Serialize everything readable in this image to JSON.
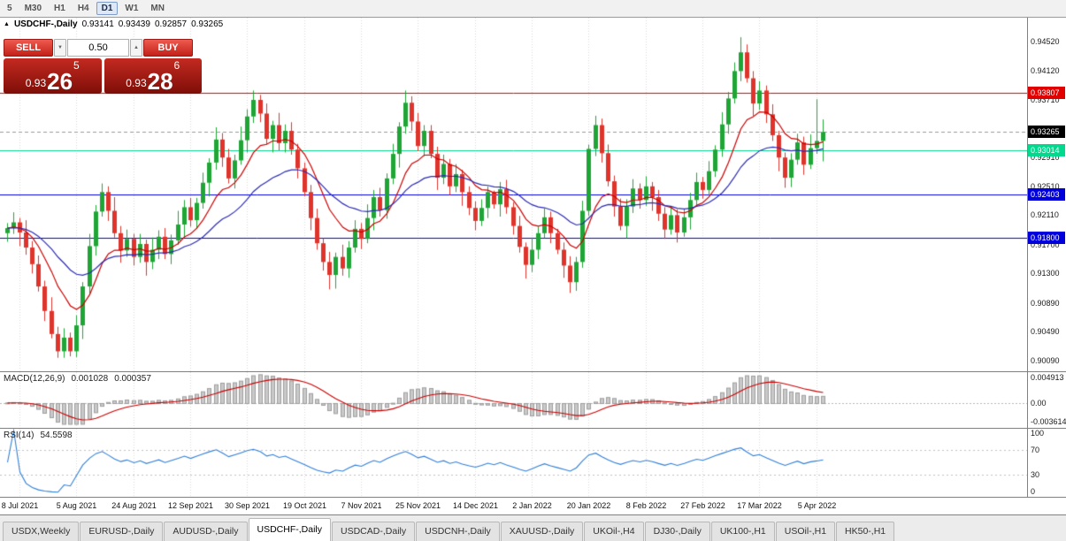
{
  "toolbar": {
    "timeframes": [
      "5",
      "M30",
      "H1",
      "H4",
      "D1",
      "W1",
      "MN"
    ],
    "active": "D1"
  },
  "icons": {
    "symbol_arrow": "▲",
    "caret_down": "▼",
    "caret_up": "▲"
  },
  "chart": {
    "header": {
      "title": "USDCHF-,Daily",
      "open": "0.93141",
      "high": "0.93439",
      "low": "0.92857",
      "close": "0.93265"
    },
    "y_axis": [
      "0.94520",
      "0.94120",
      "0.93710",
      "0.93310",
      "0.92910",
      "0.92510",
      "0.92110",
      "0.91700",
      "0.91300",
      "0.90890",
      "0.90490",
      "0.90090"
    ]
  },
  "trade": {
    "sell_label": "SELL",
    "buy_label": "BUY",
    "volume": "0.50",
    "sell_price": {
      "prefix": "0.93",
      "pips": "26",
      "point": "5"
    },
    "buy_price": {
      "prefix": "0.93",
      "pips": "28",
      "point": "6"
    }
  },
  "macd": {
    "title": "MACD(12,26,9)",
    "value_main": "0.001028",
    "value_signal": "0.000357",
    "axis": [
      "0.004913",
      "0.00",
      "-0.003614"
    ]
  },
  "rsi": {
    "title": "RSI(14)",
    "value": "54.5598",
    "axis": [
      "100",
      "70",
      "30",
      "0"
    ]
  },
  "time_axis": [
    "8 Jul 2021",
    "5 Aug 2021",
    "24 Aug 2021",
    "12 Sep 2021",
    "30 Sep 2021",
    "19 Oct 2021",
    "7 Nov 2021",
    "25 Nov 2021",
    "14 Dec 2021",
    "2 Jan 2022",
    "20 Jan 2022",
    "8 Feb 2022",
    "27 Feb 2022",
    "17 Mar 2022",
    "5 Apr 2022"
  ],
  "tabs": [
    {
      "label": "USDX,Weekly"
    },
    {
      "label": "EURUSD-,Daily"
    },
    {
      "label": "AUDUSD-,Daily"
    },
    {
      "label": "USDCHF-,Daily",
      "active": true
    },
    {
      "label": "USDCAD-,Daily"
    },
    {
      "label": "USDCNH-,Daily"
    },
    {
      "label": "XAUUSD-,Daily"
    },
    {
      "label": "UKOil-,H4"
    },
    {
      "label": "DJ30-,Daily"
    },
    {
      "label": "UK100-,H1"
    },
    {
      "label": "USOil-,H1"
    },
    {
      "label": "HK50-,H1"
    }
  ],
  "chart_data": {
    "type": "candlestick",
    "title": "USDCHF-,Daily",
    "up_color": "#1fa535",
    "down_color": "#de342c",
    "y_range": [
      0.9009,
      0.9452
    ],
    "x_tick_labels": [
      "8 Jul 2021",
      "5 Aug 2021",
      "24 Aug 2021",
      "12 Sep 2021",
      "30 Sep 2021",
      "19 Oct 2021",
      "7 Nov 2021",
      "25 Nov 2021",
      "14 Dec 2021",
      "2 Jan 2022",
      "20 Jan 2022",
      "8 Feb 2022",
      "27 Feb 2022",
      "17 Mar 2022",
      "5 Apr 2022"
    ],
    "x_tick_indices": [
      2,
      11,
      20,
      29,
      38,
      47,
      56,
      65,
      74,
      83,
      92,
      101,
      110,
      119,
      128
    ],
    "candles": [
      [
        0.9186,
        0.92,
        0.9174,
        0.9193
      ],
      [
        0.9193,
        0.9215,
        0.9185,
        0.9201
      ],
      [
        0.9201,
        0.9207,
        0.9168,
        0.9187
      ],
      [
        0.9187,
        0.9204,
        0.9156,
        0.9166
      ],
      [
        0.9166,
        0.9175,
        0.913,
        0.9143
      ],
      [
        0.9143,
        0.9155,
        0.9105,
        0.9112
      ],
      [
        0.9112,
        0.912,
        0.9064,
        0.9078
      ],
      [
        0.9078,
        0.9097,
        0.904,
        0.9046
      ],
      [
        0.9046,
        0.9056,
        0.9013,
        0.9022
      ],
      [
        0.9022,
        0.9054,
        0.9013,
        0.9041
      ],
      [
        0.9041,
        0.9048,
        0.9015,
        0.9022
      ],
      [
        0.9022,
        0.9072,
        0.9014,
        0.9058
      ],
      [
        0.9058,
        0.9118,
        0.9039,
        0.9112
      ],
      [
        0.9112,
        0.9185,
        0.9102,
        0.9168
      ],
      [
        0.9168,
        0.9225,
        0.9155,
        0.9216
      ],
      [
        0.9216,
        0.9255,
        0.9209,
        0.9243
      ],
      [
        0.9243,
        0.9251,
        0.9203,
        0.9217
      ],
      [
        0.9217,
        0.9236,
        0.918,
        0.9186
      ],
      [
        0.9186,
        0.9196,
        0.9145,
        0.9162
      ],
      [
        0.9162,
        0.9191,
        0.9153,
        0.9178
      ],
      [
        0.9178,
        0.9185,
        0.9141,
        0.9153
      ],
      [
        0.9153,
        0.9185,
        0.9145,
        0.9171
      ],
      [
        0.9171,
        0.9177,
        0.9127,
        0.9146
      ],
      [
        0.9146,
        0.918,
        0.9136,
        0.9163
      ],
      [
        0.9163,
        0.919,
        0.915,
        0.9181
      ],
      [
        0.9181,
        0.9193,
        0.915,
        0.9157
      ],
      [
        0.9157,
        0.9184,
        0.9143,
        0.9176
      ],
      [
        0.9176,
        0.9217,
        0.917,
        0.9198
      ],
      [
        0.9198,
        0.9232,
        0.9181,
        0.9222
      ],
      [
        0.9222,
        0.9235,
        0.9195,
        0.9204
      ],
      [
        0.9204,
        0.9235,
        0.9192,
        0.9228
      ],
      [
        0.9228,
        0.927,
        0.922,
        0.9256
      ],
      [
        0.9256,
        0.929,
        0.9237,
        0.9284
      ],
      [
        0.9284,
        0.9333,
        0.9274,
        0.9316
      ],
      [
        0.9316,
        0.9325,
        0.9278,
        0.9291
      ],
      [
        0.9291,
        0.9303,
        0.9255,
        0.9262
      ],
      [
        0.9262,
        0.9295,
        0.9248,
        0.9287
      ],
      [
        0.9287,
        0.9334,
        0.9281,
        0.9315
      ],
      [
        0.9315,
        0.9358,
        0.9298,
        0.9348
      ],
      [
        0.9348,
        0.9384,
        0.9339,
        0.9371
      ],
      [
        0.9371,
        0.9378,
        0.934,
        0.9352
      ],
      [
        0.9352,
        0.9366,
        0.9309,
        0.9317
      ],
      [
        0.9317,
        0.9342,
        0.9298,
        0.9336
      ],
      [
        0.9336,
        0.9353,
        0.9301,
        0.9311
      ],
      [
        0.9311,
        0.9337,
        0.9298,
        0.9328
      ],
      [
        0.9328,
        0.934,
        0.9295,
        0.9302
      ],
      [
        0.9302,
        0.931,
        0.9262,
        0.9276
      ],
      [
        0.9276,
        0.9284,
        0.9237,
        0.9243
      ],
      [
        0.9243,
        0.9253,
        0.919,
        0.9207
      ],
      [
        0.9207,
        0.922,
        0.9163,
        0.9172
      ],
      [
        0.9172,
        0.9179,
        0.9134,
        0.9146
      ],
      [
        0.9146,
        0.916,
        0.9108,
        0.9128
      ],
      [
        0.9128,
        0.9159,
        0.9109,
        0.9153
      ],
      [
        0.9153,
        0.917,
        0.9127,
        0.9137
      ],
      [
        0.9137,
        0.9175,
        0.9124,
        0.9166
      ],
      [
        0.9166,
        0.9204,
        0.9159,
        0.9192
      ],
      [
        0.9192,
        0.92,
        0.9164,
        0.9178
      ],
      [
        0.9178,
        0.9226,
        0.9172,
        0.9207
      ],
      [
        0.9207,
        0.9246,
        0.919,
        0.9236
      ],
      [
        0.9236,
        0.9249,
        0.9209,
        0.9218
      ],
      [
        0.9218,
        0.9269,
        0.9206,
        0.9262
      ],
      [
        0.9262,
        0.931,
        0.9254,
        0.9296
      ],
      [
        0.9296,
        0.934,
        0.9277,
        0.9334
      ],
      [
        0.9334,
        0.9384,
        0.9324,
        0.9367
      ],
      [
        0.9367,
        0.9376,
        0.9328,
        0.9341
      ],
      [
        0.9341,
        0.9353,
        0.93,
        0.9307
      ],
      [
        0.9307,
        0.9336,
        0.9293,
        0.9328
      ],
      [
        0.9328,
        0.9336,
        0.929,
        0.9296
      ],
      [
        0.9296,
        0.9306,
        0.9246,
        0.9263
      ],
      [
        0.9263,
        0.9295,
        0.9254,
        0.9282
      ],
      [
        0.9282,
        0.9289,
        0.9239,
        0.9251
      ],
      [
        0.9251,
        0.9282,
        0.9243,
        0.9268
      ],
      [
        0.9268,
        0.9274,
        0.9224,
        0.9243
      ],
      [
        0.9243,
        0.9251,
        0.9211,
        0.9221
      ],
      [
        0.9221,
        0.923,
        0.919,
        0.9203
      ],
      [
        0.9203,
        0.9233,
        0.9196,
        0.9221
      ],
      [
        0.9221,
        0.9251,
        0.9207,
        0.9243
      ],
      [
        0.9243,
        0.9245,
        0.922,
        0.9226
      ],
      [
        0.9226,
        0.9257,
        0.9209,
        0.9247
      ],
      [
        0.9247,
        0.926,
        0.9213,
        0.9222
      ],
      [
        0.9222,
        0.9229,
        0.9184,
        0.9196
      ],
      [
        0.9196,
        0.921,
        0.9159,
        0.9167
      ],
      [
        0.9167,
        0.9173,
        0.9123,
        0.9142
      ],
      [
        0.9142,
        0.918,
        0.9132,
        0.9163
      ],
      [
        0.9163,
        0.9195,
        0.915,
        0.9186
      ],
      [
        0.9186,
        0.922,
        0.9179,
        0.9208
      ],
      [
        0.9208,
        0.9216,
        0.9172,
        0.9186
      ],
      [
        0.9186,
        0.9192,
        0.9157,
        0.9163
      ],
      [
        0.9163,
        0.9173,
        0.9124,
        0.9141
      ],
      [
        0.9141,
        0.9154,
        0.9103,
        0.9118
      ],
      [
        0.9118,
        0.9153,
        0.9106,
        0.9146
      ],
      [
        0.9146,
        0.9231,
        0.9138,
        0.9217
      ],
      [
        0.9217,
        0.9309,
        0.921,
        0.9303
      ],
      [
        0.9303,
        0.9349,
        0.9293,
        0.9336
      ],
      [
        0.9336,
        0.9345,
        0.9284,
        0.9297
      ],
      [
        0.9297,
        0.9309,
        0.9251,
        0.9258
      ],
      [
        0.9258,
        0.9266,
        0.9209,
        0.9223
      ],
      [
        0.9223,
        0.9234,
        0.919,
        0.9196
      ],
      [
        0.9196,
        0.9233,
        0.9179,
        0.9223
      ],
      [
        0.9223,
        0.9261,
        0.9214,
        0.9248
      ],
      [
        0.9248,
        0.9255,
        0.922,
        0.9232
      ],
      [
        0.9232,
        0.9265,
        0.9224,
        0.9251
      ],
      [
        0.9251,
        0.9257,
        0.9217,
        0.9236
      ],
      [
        0.9236,
        0.9246,
        0.9203,
        0.9213
      ],
      [
        0.9213,
        0.9222,
        0.9178,
        0.9191
      ],
      [
        0.9191,
        0.9223,
        0.9184,
        0.9211
      ],
      [
        0.9211,
        0.9219,
        0.9173,
        0.9187
      ],
      [
        0.9187,
        0.9219,
        0.9181,
        0.9208
      ],
      [
        0.9208,
        0.9242,
        0.9191,
        0.9232
      ],
      [
        0.9232,
        0.927,
        0.9223,
        0.9257
      ],
      [
        0.9257,
        0.9264,
        0.9234,
        0.9246
      ],
      [
        0.9246,
        0.9286,
        0.9238,
        0.9272
      ],
      [
        0.9272,
        0.9308,
        0.9264,
        0.9302
      ],
      [
        0.9302,
        0.9354,
        0.9292,
        0.9337
      ],
      [
        0.9337,
        0.9382,
        0.9324,
        0.9373
      ],
      [
        0.9373,
        0.9423,
        0.9366,
        0.9411
      ],
      [
        0.9411,
        0.9458,
        0.9397,
        0.9437
      ],
      [
        0.9437,
        0.9448,
        0.9395,
        0.9401
      ],
      [
        0.9401,
        0.9411,
        0.9349,
        0.9366
      ],
      [
        0.9366,
        0.9397,
        0.9357,
        0.9384
      ],
      [
        0.9384,
        0.9391,
        0.9339,
        0.9351
      ],
      [
        0.9351,
        0.9365,
        0.9314,
        0.9322
      ],
      [
        0.9322,
        0.9328,
        0.9272,
        0.9291
      ],
      [
        0.9291,
        0.9298,
        0.9249,
        0.9263
      ],
      [
        0.9263,
        0.9297,
        0.925,
        0.9288
      ],
      [
        0.9288,
        0.9324,
        0.9281,
        0.9312
      ],
      [
        0.9312,
        0.932,
        0.9267,
        0.9281
      ],
      [
        0.9281,
        0.9323,
        0.9275,
        0.9304
      ],
      [
        0.9304,
        0.9372,
        0.9296,
        0.9314
      ],
      [
        0.93141,
        0.93439,
        0.92857,
        0.93265
      ]
    ],
    "overlays": {
      "moving_averages": [
        {
          "type": "ema",
          "period": 10,
          "color": "#cc0000"
        },
        {
          "type": "ema",
          "period": 25,
          "color": "#2b2bb4"
        }
      ],
      "horizontal_lines": [
        {
          "price": 0.93807,
          "label": "0.93807",
          "color": "#e00000"
        },
        {
          "price": 0.93014,
          "label": "0.93014",
          "color": "#00d98e"
        },
        {
          "price": 0.92403,
          "label": "0.92403",
          "color": "#0000dd"
        },
        {
          "price": 0.918,
          "label": "0.91800",
          "color": "#0000dd"
        }
      ],
      "bid": {
        "price": 0.93265,
        "label": "0.93265",
        "color": "#000000"
      }
    },
    "indicators": [
      {
        "name": "MACD",
        "params": [
          12,
          26,
          9
        ],
        "current": [
          0.001028,
          0.000357
        ],
        "range": [
          -0.003614,
          0.004913
        ],
        "histogram_color": "#c9c9c9",
        "signal_color": "#cc0000",
        "axis_ticks": [
          "0.004913",
          "0.00",
          "-0.003614"
        ]
      },
      {
        "name": "RSI",
        "params": [
          14
        ],
        "current": 54.5598,
        "range": [
          0,
          100
        ],
        "levels": [
          70,
          30
        ],
        "line_color": "#2f7ed8",
        "axis_ticks": [
          "100",
          "70",
          "30",
          "0"
        ]
      }
    ]
  }
}
